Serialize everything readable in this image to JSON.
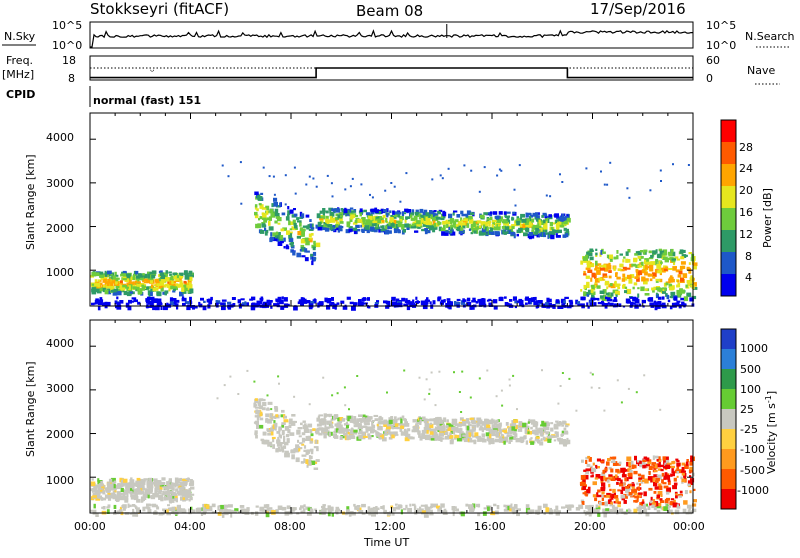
{
  "header": {
    "station": "Stokkseyri (fitACF)",
    "beam": "Beam 08",
    "date": "17/Sep/2016"
  },
  "sky_panel": {
    "left_label": "N.Sky",
    "right_label": "N.Search",
    "left_ticks": [
      "10^5",
      "10^0"
    ],
    "right_ticks": [
      "10^5",
      "10^0"
    ]
  },
  "freq_panel": {
    "label_line1": "Freq.",
    "label_line2": "[MHz]",
    "left_ticks": [
      "18",
      "8"
    ],
    "right_ticks": [
      "60",
      "0"
    ],
    "right_label": "Nave"
  },
  "cpid": {
    "label": "CPID",
    "value": "normal (fast) 151"
  },
  "axes": {
    "ylabel": "Slant Range [km]",
    "y_ticks": [
      "4000",
      "3000",
      "2000",
      "1000"
    ],
    "x_ticks": [
      "00:00",
      "04:00",
      "08:00",
      "12:00",
      "16:00",
      "20:00",
      "00:00"
    ],
    "xlabel": "Time UT"
  },
  "power_scale": {
    "label": "Power [dB]",
    "ticks": [
      "28",
      "24",
      "20",
      "16",
      "12",
      "8",
      "4"
    ],
    "colors": [
      "#0000ee",
      "#1e58c8",
      "#2e9a66",
      "#6ecb3c",
      "#e6e61e",
      "#ffa500",
      "#ff5a00",
      "#ff0000"
    ]
  },
  "velocity_scale": {
    "label_text": "Velocity [m s",
    "label_sup": "-1",
    "label_end": "]",
    "ticks": [
      "1000",
      "500",
      "100",
      "25",
      "-25",
      "-100",
      "-500",
      "-1000"
    ],
    "colors": [
      "#1f3fc8",
      "#2b7fd8",
      "#2e9a4a",
      "#66cc33",
      "#c8c8c0",
      "#ffd040",
      "#ff9a1e",
      "#ff5a00",
      "#ee0000"
    ]
  },
  "chart_data": {
    "type": "heatmap",
    "x_range_hours": [
      0,
      24
    ],
    "y_range_km": [
      180,
      4600
    ],
    "freq_step": {
      "x_hours": [
        0,
        9,
        9,
        19,
        19,
        24
      ],
      "freq_mhz": [
        9,
        9,
        13,
        13,
        9,
        9
      ]
    },
    "echo_regions": [
      {
        "name": "near-range band",
        "t_start": 0,
        "t_end": 4,
        "range_km": [
          500,
          1000
        ],
        "peak_power_db": 26,
        "velocity": "low"
      },
      {
        "name": "main E-W band",
        "t_start": 6.5,
        "t_end": 19,
        "range_km": [
          1300,
          3200
        ],
        "peak_power_db": 22,
        "velocity": "low"
      },
      {
        "name": "evening near-range",
        "t_start": 19.5,
        "t_end": 24,
        "range_km": [
          400,
          1500
        ],
        "peak_power_db": 28,
        "velocity": "negative"
      },
      {
        "name": "ground scatter floor",
        "t_start": 0,
        "t_end": 24,
        "range_km": [
          180,
          400
        ],
        "peak_power_db": 8,
        "velocity": "low"
      }
    ]
  }
}
